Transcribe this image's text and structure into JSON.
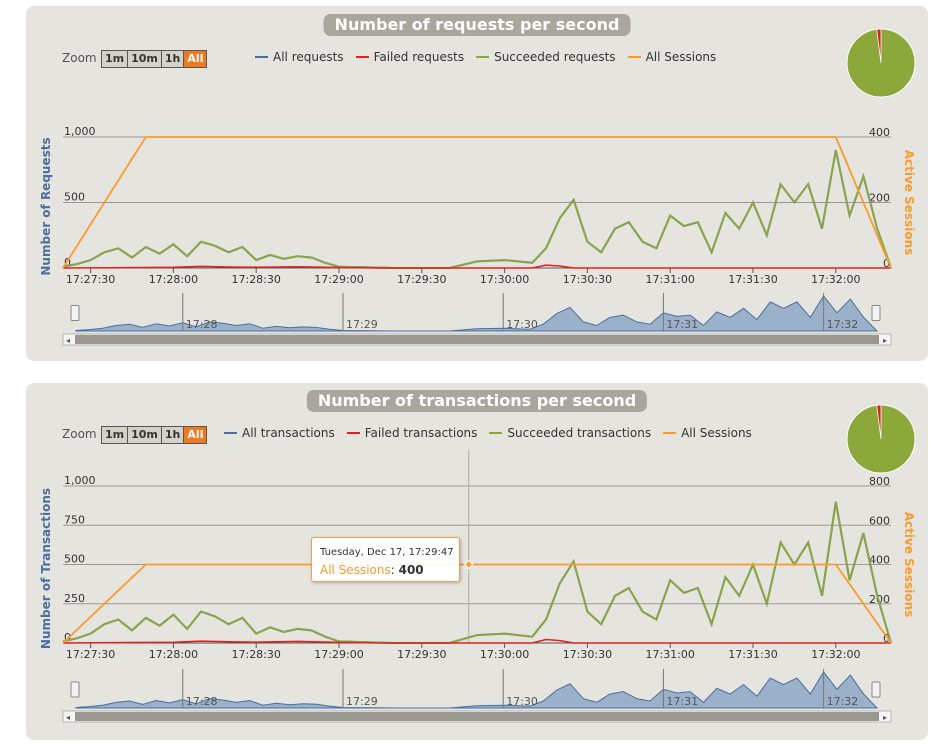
{
  "zoom": {
    "label": "Zoom",
    "buttons": [
      "1m",
      "10m",
      "1h",
      "All"
    ],
    "active": "All"
  },
  "colors": {
    "all": "#4a6f9f",
    "failed": "#e0201e",
    "succeeded": "#8da83a",
    "sessions": "#f99b2d",
    "navigator_fill": "#9bb0c9"
  },
  "x_ticks": [
    "17:27:30",
    "17:28:00",
    "17:28:30",
    "17:29:00",
    "17:29:30",
    "17:30:00",
    "17:30:30",
    "17:31:00",
    "17:31:30",
    "17:32:00"
  ],
  "navigator_ticks": [
    "17:28",
    "17:29",
    "17:30",
    "17:31",
    "17:32"
  ],
  "tooltip": {
    "line1": "Tuesday, Dec 17, 17:29:47",
    "name": "All Sessions",
    "value": "400"
  },
  "chart_data": [
    {
      "type": "line",
      "title": "Number of requests per second",
      "ylabel": "Number of Requests",
      "y2label": "Active Sessions",
      "ylim": [
        0,
        1000
      ],
      "yticks": [
        "1,000",
        "500",
        "0"
      ],
      "y2lim": [
        0,
        400
      ],
      "y2ticks": [
        "400",
        "200",
        "0"
      ],
      "xlim": [
        "17:27:20",
        "17:32:20"
      ],
      "legend": {
        "position": "top"
      },
      "series": [
        {
          "name": "All requests",
          "key": "all",
          "axis": "left"
        },
        {
          "name": "Failed requests",
          "key": "failed",
          "axis": "left"
        },
        {
          "name": "Succeeded requests",
          "key": "succeeded",
          "axis": "left"
        },
        {
          "name": "All Sessions",
          "key": "sessions",
          "axis": "right",
          "points": [
            [
              "17:27:20",
              0
            ],
            [
              "17:27:50",
              400
            ],
            [
              "17:32:00",
              400
            ],
            [
              "17:32:20",
              0
            ]
          ]
        }
      ],
      "pie": {
        "succeeded_share": 0.98,
        "failed_share": 0.02
      }
    },
    {
      "type": "line",
      "title": "Number of transactions per second",
      "ylabel": "Number of Transactions",
      "y2label": "Active Sessions",
      "ylim": [
        0,
        1000
      ],
      "yticks": [
        "1,000",
        "750",
        "500",
        "250",
        "0"
      ],
      "y2lim": [
        0,
        800
      ],
      "y2ticks": [
        "800",
        "600",
        "400",
        "200",
        "0"
      ],
      "xlim": [
        "17:27:20",
        "17:32:20"
      ],
      "legend": {
        "position": "top"
      },
      "series": [
        {
          "name": "All transactions",
          "key": "all",
          "axis": "left"
        },
        {
          "name": "Failed transactions",
          "key": "failed",
          "axis": "left"
        },
        {
          "name": "Succeeded transactions",
          "key": "succeeded",
          "axis": "left"
        },
        {
          "name": "All Sessions",
          "key": "sessions",
          "axis": "right",
          "points": [
            [
              "17:27:20",
              0
            ],
            [
              "17:27:50",
              400
            ],
            [
              "17:32:00",
              400
            ],
            [
              "17:32:20",
              0
            ]
          ]
        }
      ],
      "pie": {
        "succeeded_share": 0.98,
        "failed_share": 0.02
      }
    }
  ],
  "request_series": [
    [
      "17:27:20",
      10
    ],
    [
      "17:27:25",
      30
    ],
    [
      "17:27:30",
      60
    ],
    [
      "17:27:35",
      120
    ],
    [
      "17:27:40",
      150
    ],
    [
      "17:27:45",
      80
    ],
    [
      "17:27:50",
      160
    ],
    [
      "17:27:55",
      110
    ],
    [
      "17:28:00",
      180
    ],
    [
      "17:28:05",
      90
    ],
    [
      "17:28:10",
      200
    ],
    [
      "17:28:15",
      170
    ],
    [
      "17:28:20",
      120
    ],
    [
      "17:28:25",
      160
    ],
    [
      "17:28:30",
      60
    ],
    [
      "17:28:35",
      100
    ],
    [
      "17:28:40",
      70
    ],
    [
      "17:28:45",
      90
    ],
    [
      "17:28:50",
      80
    ],
    [
      "17:28:55",
      40
    ],
    [
      "17:29:00",
      10
    ],
    [
      "17:29:10",
      5
    ],
    [
      "17:29:20",
      0
    ],
    [
      "17:29:30",
      0
    ],
    [
      "17:29:40",
      0
    ],
    [
      "17:29:50",
      50
    ],
    [
      "17:30:00",
      60
    ],
    [
      "17:30:10",
      40
    ],
    [
      "17:30:15",
      150
    ],
    [
      "17:30:20",
      380
    ],
    [
      "17:30:25",
      520
    ],
    [
      "17:30:30",
      200
    ],
    [
      "17:30:35",
      120
    ],
    [
      "17:30:40",
      300
    ],
    [
      "17:30:45",
      350
    ],
    [
      "17:30:50",
      200
    ],
    [
      "17:30:55",
      150
    ],
    [
      "17:31:00",
      400
    ],
    [
      "17:31:05",
      320
    ],
    [
      "17:31:10",
      350
    ],
    [
      "17:31:15",
      120
    ],
    [
      "17:31:20",
      420
    ],
    [
      "17:31:25",
      300
    ],
    [
      "17:31:30",
      500
    ],
    [
      "17:31:35",
      250
    ],
    [
      "17:31:40",
      640
    ],
    [
      "17:31:45",
      500
    ],
    [
      "17:31:50",
      640
    ],
    [
      "17:31:55",
      300
    ],
    [
      "17:32:00",
      900
    ],
    [
      "17:32:05",
      400
    ],
    [
      "17:32:10",
      700
    ],
    [
      "17:32:15",
      300
    ],
    [
      "17:32:20",
      0
    ]
  ],
  "failed_series": [
    [
      "17:27:20",
      0
    ],
    [
      "17:28:00",
      5
    ],
    [
      "17:28:10",
      12
    ],
    [
      "17:28:20",
      8
    ],
    [
      "17:28:30",
      6
    ],
    [
      "17:28:45",
      10
    ],
    [
      "17:29:00",
      4
    ],
    [
      "17:29:15",
      0
    ],
    [
      "17:30:10",
      0
    ],
    [
      "17:30:15",
      22
    ],
    [
      "17:30:20",
      15
    ],
    [
      "17:30:25",
      0
    ],
    [
      "17:32:20",
      0
    ]
  ]
}
